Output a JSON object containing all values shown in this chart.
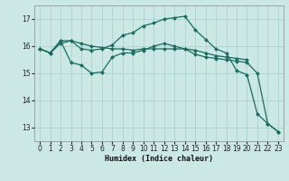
{
  "xlabel": "Humidex (Indice chaleur)",
  "bg_color": "#cce8e4",
  "grid_color": "#aad4cc",
  "line_color": "#1a6b60",
  "xlim": [
    -0.5,
    23.5
  ],
  "ylim": [
    12.5,
    17.5
  ],
  "yticks": [
    13,
    14,
    15,
    16,
    17
  ],
  "xticks": [
    0,
    1,
    2,
    3,
    4,
    5,
    6,
    7,
    8,
    9,
    10,
    11,
    12,
    13,
    14,
    15,
    16,
    17,
    18,
    19,
    20,
    21,
    22,
    23
  ],
  "series": [
    {
      "x": [
        0,
        1,
        2,
        3,
        4,
        5,
        6,
        7,
        8,
        9,
        10,
        11,
        12,
        13,
        14,
        15,
        16,
        17,
        18,
        19,
        20,
        21,
        22,
        23
      ],
      "y": [
        15.9,
        15.75,
        16.2,
        16.2,
        15.9,
        15.85,
        15.9,
        16.05,
        16.4,
        16.5,
        16.75,
        16.85,
        17.0,
        17.05,
        17.1,
        16.6,
        16.25,
        15.9,
        15.75,
        15.1,
        14.95,
        13.5,
        13.15,
        12.85
      ]
    },
    {
      "x": [
        0,
        1,
        2,
        3,
        4,
        5,
        6,
        7,
        8,
        9,
        10,
        11,
        12,
        13,
        14,
        15,
        16,
        17,
        18,
        19,
        20
      ],
      "y": [
        15.9,
        15.75,
        16.1,
        16.2,
        16.1,
        16.0,
        15.95,
        15.9,
        15.9,
        15.85,
        15.9,
        15.9,
        15.9,
        15.9,
        15.9,
        15.85,
        15.75,
        15.65,
        15.6,
        15.55,
        15.5
      ]
    },
    {
      "x": [
        0,
        1,
        2,
        3,
        4,
        5,
        6,
        7,
        8,
        9,
        10,
        11,
        12,
        13,
        14,
        15,
        16,
        17,
        18,
        19,
        20,
        21,
        22,
        23
      ],
      "y": [
        15.9,
        15.75,
        16.2,
        15.4,
        15.3,
        15.0,
        15.05,
        15.6,
        15.75,
        15.75,
        15.85,
        16.0,
        16.1,
        16.0,
        15.9,
        15.7,
        15.6,
        15.55,
        15.5,
        15.45,
        15.4,
        15.0,
        13.15,
        12.85
      ]
    }
  ]
}
